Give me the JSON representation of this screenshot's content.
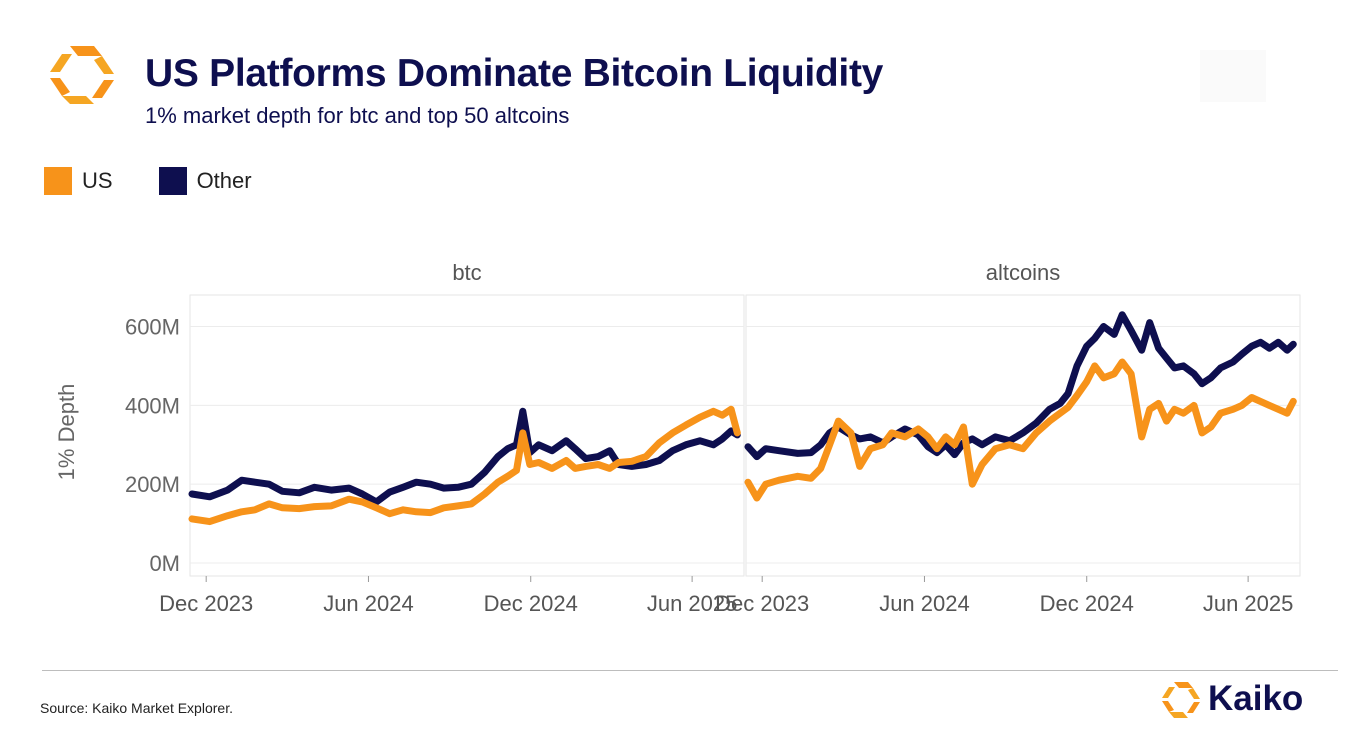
{
  "header": {
    "title": "US Platforms Dominate Bitcoin Liquidity",
    "subtitle": "1% market depth for btc and top 50 altcoins"
  },
  "legend": [
    {
      "label": "US",
      "color": "#f7931a"
    },
    {
      "label": "Other",
      "color": "#0e0f4f"
    }
  ],
  "footer": {
    "source": "Source: Kaiko Market Explorer.",
    "brand": "Kaiko",
    "brand_color": "#0e0f4f",
    "accent_color": "#f7931a"
  },
  "chart_data": {
    "type": "line",
    "ylabel": "1% Depth",
    "yticks": [
      "0M",
      "200M",
      "400M",
      "600M"
    ],
    "ylim": [
      0,
      680
    ],
    "y_unit": "M",
    "xlim": [
      "2023-11-15",
      "2025-07-25"
    ],
    "xticks": [
      {
        "date": "2023-12-01",
        "label": "Dec 2023"
      },
      {
        "date": "2024-06-01",
        "label": "Jun 2024"
      },
      {
        "date": "2024-12-01",
        "label": "Dec 2024"
      },
      {
        "date": "2025-06-01",
        "label": "Jun 2025"
      }
    ],
    "grid": true,
    "panels": [
      {
        "label": "btc",
        "series": [
          {
            "name": "Other",
            "color": "#0e0f4f",
            "points": [
              [
                "2023-11-15",
                175
              ],
              [
                "2023-12-05",
                168
              ],
              [
                "2023-12-25",
                185
              ],
              [
                "2024-01-10",
                210
              ],
              [
                "2024-01-25",
                205
              ],
              [
                "2024-02-10",
                200
              ],
              [
                "2024-02-25",
                182
              ],
              [
                "2024-03-15",
                178
              ],
              [
                "2024-04-01",
                192
              ],
              [
                "2024-04-20",
                185
              ],
              [
                "2024-05-10",
                190
              ],
              [
                "2024-05-25",
                175
              ],
              [
                "2024-06-10",
                155
              ],
              [
                "2024-06-25",
                180
              ],
              [
                "2024-07-10",
                192
              ],
              [
                "2024-07-25",
                205
              ],
              [
                "2024-08-10",
                200
              ],
              [
                "2024-08-25",
                190
              ],
              [
                "2024-09-10",
                192
              ],
              [
                "2024-09-25",
                200
              ],
              [
                "2024-10-10",
                230
              ],
              [
                "2024-10-25",
                270
              ],
              [
                "2024-11-05",
                290
              ],
              [
                "2024-11-15",
                300
              ],
              [
                "2024-11-22",
                385
              ],
              [
                "2024-11-30",
                280
              ],
              [
                "2024-12-10",
                300
              ],
              [
                "2024-12-25",
                285
              ],
              [
                "2025-01-10",
                310
              ],
              [
                "2025-01-20",
                290
              ],
              [
                "2025-02-01",
                265
              ],
              [
                "2025-02-15",
                270
              ],
              [
                "2025-02-28",
                285
              ],
              [
                "2025-03-10",
                250
              ],
              [
                "2025-03-25",
                245
              ],
              [
                "2025-04-10",
                250
              ],
              [
                "2025-04-25",
                260
              ],
              [
                "2025-05-10",
                285
              ],
              [
                "2025-05-25",
                300
              ],
              [
                "2025-06-10",
                310
              ],
              [
                "2025-06-25",
                300
              ],
              [
                "2025-07-05",
                315
              ],
              [
                "2025-07-15",
                335
              ],
              [
                "2025-07-22",
                325
              ]
            ]
          },
          {
            "name": "US",
            "color": "#f7931a",
            "points": [
              [
                "2023-11-15",
                112
              ],
              [
                "2023-12-05",
                105
              ],
              [
                "2023-12-25",
                120
              ],
              [
                "2024-01-10",
                130
              ],
              [
                "2024-01-25",
                135
              ],
              [
                "2024-02-10",
                150
              ],
              [
                "2024-02-25",
                140
              ],
              [
                "2024-03-15",
                138
              ],
              [
                "2024-04-01",
                143
              ],
              [
                "2024-04-20",
                145
              ],
              [
                "2024-05-10",
                162
              ],
              [
                "2024-05-25",
                155
              ],
              [
                "2024-06-10",
                140
              ],
              [
                "2024-06-25",
                125
              ],
              [
                "2024-07-10",
                135
              ],
              [
                "2024-07-25",
                130
              ],
              [
                "2024-08-10",
                128
              ],
              [
                "2024-08-25",
                140
              ],
              [
                "2024-09-10",
                145
              ],
              [
                "2024-09-25",
                150
              ],
              [
                "2024-10-10",
                175
              ],
              [
                "2024-10-25",
                205
              ],
              [
                "2024-11-05",
                220
              ],
              [
                "2024-11-15",
                235
              ],
              [
                "2024-11-22",
                330
              ],
              [
                "2024-11-30",
                250
              ],
              [
                "2024-12-10",
                255
              ],
              [
                "2024-12-25",
                240
              ],
              [
                "2025-01-10",
                260
              ],
              [
                "2025-01-20",
                240
              ],
              [
                "2025-02-01",
                245
              ],
              [
                "2025-02-15",
                250
              ],
              [
                "2025-02-28",
                240
              ],
              [
                "2025-03-10",
                255
              ],
              [
                "2025-03-25",
                258
              ],
              [
                "2025-04-10",
                270
              ],
              [
                "2025-04-25",
                305
              ],
              [
                "2025-05-10",
                330
              ],
              [
                "2025-05-25",
                350
              ],
              [
                "2025-06-10",
                370
              ],
              [
                "2025-06-25",
                385
              ],
              [
                "2025-07-05",
                375
              ],
              [
                "2025-07-15",
                390
              ],
              [
                "2025-07-22",
                330
              ]
            ]
          }
        ]
      },
      {
        "label": "altcoins",
        "series": [
          {
            "name": "Other",
            "color": "#0e0f4f",
            "points": [
              [
                "2023-11-15",
                295
              ],
              [
                "2023-11-25",
                270
              ],
              [
                "2023-12-05",
                290
              ],
              [
                "2023-12-20",
                285
              ],
              [
                "2024-01-10",
                278
              ],
              [
                "2024-01-25",
                280
              ],
              [
                "2024-02-05",
                300
              ],
              [
                "2024-02-15",
                330
              ],
              [
                "2024-02-25",
                345
              ],
              [
                "2024-03-10",
                325
              ],
              [
                "2024-03-20",
                315
              ],
              [
                "2024-04-01",
                320
              ],
              [
                "2024-04-15",
                305
              ],
              [
                "2024-04-25",
                320
              ],
              [
                "2024-05-10",
                340
              ],
              [
                "2024-05-25",
                325
              ],
              [
                "2024-06-05",
                295
              ],
              [
                "2024-06-15",
                280
              ],
              [
                "2024-06-25",
                300
              ],
              [
                "2024-07-05",
                275
              ],
              [
                "2024-07-15",
                305
              ],
              [
                "2024-07-25",
                315
              ],
              [
                "2024-08-05",
                300
              ],
              [
                "2024-08-20",
                320
              ],
              [
                "2024-09-05",
                310
              ],
              [
                "2024-09-20",
                330
              ],
              [
                "2024-10-05",
                355
              ],
              [
                "2024-10-20",
                390
              ],
              [
                "2024-11-01",
                405
              ],
              [
                "2024-11-10",
                430
              ],
              [
                "2024-11-20",
                500
              ],
              [
                "2024-12-01",
                550
              ],
              [
                "2024-12-10",
                570
              ],
              [
                "2024-12-20",
                600
              ],
              [
                "2025-01-01",
                580
              ],
              [
                "2025-01-10",
                630
              ],
              [
                "2025-01-20",
                590
              ],
              [
                "2025-02-01",
                540
              ],
              [
                "2025-02-10",
                610
              ],
              [
                "2025-02-20",
                545
              ],
              [
                "2025-03-01",
                520
              ],
              [
                "2025-03-10",
                495
              ],
              [
                "2025-03-20",
                500
              ],
              [
                "2025-04-01",
                480
              ],
              [
                "2025-04-10",
                455
              ],
              [
                "2025-04-20",
                470
              ],
              [
                "2025-05-01",
                495
              ],
              [
                "2025-05-15",
                510
              ],
              [
                "2025-05-25",
                530
              ],
              [
                "2025-06-05",
                550
              ],
              [
                "2025-06-15",
                560
              ],
              [
                "2025-06-25",
                545
              ],
              [
                "2025-07-05",
                560
              ],
              [
                "2025-07-15",
                540
              ],
              [
                "2025-07-22",
                555
              ]
            ]
          },
          {
            "name": "US",
            "color": "#f7931a",
            "points": [
              [
                "2023-11-15",
                205
              ],
              [
                "2023-11-25",
                165
              ],
              [
                "2023-12-05",
                200
              ],
              [
                "2023-12-20",
                210
              ],
              [
                "2024-01-10",
                220
              ],
              [
                "2024-01-25",
                215
              ],
              [
                "2024-02-05",
                240
              ],
              [
                "2024-02-15",
                300
              ],
              [
                "2024-02-25",
                360
              ],
              [
                "2024-03-10",
                330
              ],
              [
                "2024-03-20",
                245
              ],
              [
                "2024-04-01",
                290
              ],
              [
                "2024-04-15",
                300
              ],
              [
                "2024-04-25",
                330
              ],
              [
                "2024-05-10",
                320
              ],
              [
                "2024-05-25",
                340
              ],
              [
                "2024-06-05",
                320
              ],
              [
                "2024-06-15",
                290
              ],
              [
                "2024-06-25",
                320
              ],
              [
                "2024-07-05",
                300
              ],
              [
                "2024-07-15",
                345
              ],
              [
                "2024-07-25",
                200
              ],
              [
                "2024-08-05",
                250
              ],
              [
                "2024-08-20",
                290
              ],
              [
                "2024-09-05",
                300
              ],
              [
                "2024-09-20",
                290
              ],
              [
                "2024-10-05",
                330
              ],
              [
                "2024-10-20",
                360
              ],
              [
                "2024-11-01",
                380
              ],
              [
                "2024-11-10",
                395
              ],
              [
                "2024-11-20",
                425
              ],
              [
                "2024-12-01",
                460
              ],
              [
                "2024-12-10",
                500
              ],
              [
                "2024-12-20",
                470
              ],
              [
                "2025-01-01",
                480
              ],
              [
                "2025-01-10",
                510
              ],
              [
                "2025-01-20",
                480
              ],
              [
                "2025-02-01",
                320
              ],
              [
                "2025-02-10",
                390
              ],
              [
                "2025-02-20",
                405
              ],
              [
                "2025-03-01",
                360
              ],
              [
                "2025-03-10",
                390
              ],
              [
                "2025-03-20",
                380
              ],
              [
                "2025-04-01",
                400
              ],
              [
                "2025-04-10",
                330
              ],
              [
                "2025-04-20",
                345
              ],
              [
                "2025-05-01",
                380
              ],
              [
                "2025-05-15",
                390
              ],
              [
                "2025-05-25",
                400
              ],
              [
                "2025-06-05",
                420
              ],
              [
                "2025-06-15",
                410
              ],
              [
                "2025-06-25",
                400
              ],
              [
                "2025-07-05",
                390
              ],
              [
                "2025-07-15",
                380
              ],
              [
                "2025-07-22",
                410
              ]
            ]
          }
        ]
      }
    ]
  }
}
